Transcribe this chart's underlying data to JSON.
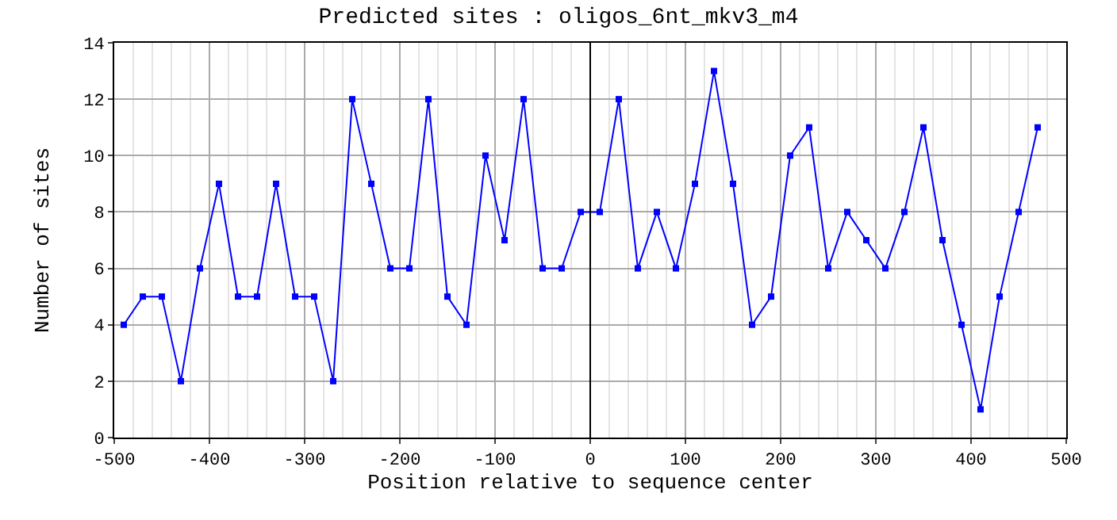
{
  "chart_data": {
    "type": "line",
    "title": "Predicted sites : oligos_6nt_mkv3_m4",
    "xlabel": "Position relative to sequence center",
    "ylabel": "Number of sites",
    "x": [
      -490,
      -470,
      -450,
      -430,
      -410,
      -390,
      -370,
      -350,
      -330,
      -310,
      -290,
      -270,
      -250,
      -230,
      -210,
      -190,
      -170,
      -150,
      -130,
      -110,
      -90,
      -70,
      -50,
      -30,
      -10,
      10,
      30,
      50,
      70,
      90,
      110,
      130,
      150,
      170,
      190,
      210,
      230,
      250,
      270,
      290,
      310,
      330,
      350,
      370,
      390,
      410,
      430,
      450,
      470
    ],
    "series": [
      {
        "color": "#0000ff",
        "values": [
          4,
          5,
          5,
          2,
          6,
          9,
          5,
          5,
          9,
          5,
          5,
          2,
          12,
          9,
          6,
          6,
          12,
          5,
          4,
          10,
          7,
          12,
          6,
          6,
          8,
          8,
          12,
          6,
          8,
          6,
          9,
          13,
          9,
          4,
          5,
          10,
          11,
          6,
          8,
          7,
          6,
          8,
          11,
          7,
          4,
          1,
          5,
          8,
          11
        ]
      }
    ],
    "xlim": [
      -500,
      500
    ],
    "xticks": [
      -500,
      -400,
      -300,
      -200,
      -100,
      0,
      100,
      200,
      300,
      400,
      500
    ],
    "ylim": [
      0,
      14
    ],
    "yticks": [
      0,
      2,
      4,
      6,
      8,
      10,
      12,
      14
    ],
    "grid": true,
    "marker": "square",
    "line_style": "solid",
    "legend": false,
    "ref_lines": [
      {
        "axis": "x",
        "value": 0,
        "color": "#000000"
      }
    ]
  }
}
